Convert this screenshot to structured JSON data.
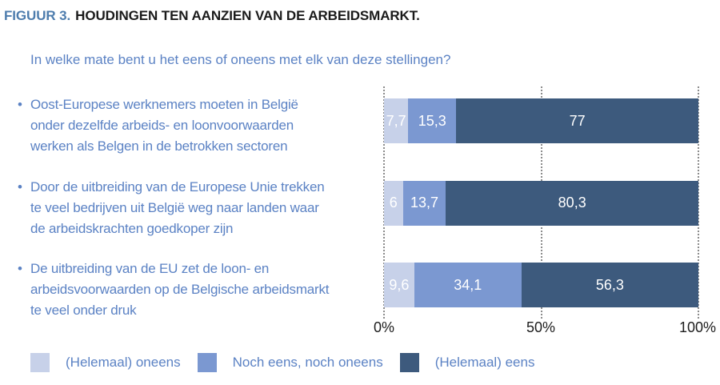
{
  "header": {
    "figure_label": "FIGUUR 3.",
    "title": "HOUDINGEN TEN AANZIEN VAN DE ARBEIDSMARKT.",
    "question": "In welke mate bent u het eens of oneens met elk van deze stellingen?"
  },
  "colors": {
    "figure_label": "#4d7cad",
    "title_text": "#1a1a1a",
    "body_text": "#5b82c4",
    "axis_text": "#1c1c1c",
    "gridline": "#8c8c8c",
    "value_label": "#ffffff"
  },
  "chart_data": {
    "type": "bar",
    "orientation": "horizontal",
    "stacked": true,
    "units": "percent",
    "xlim": [
      0,
      100
    ],
    "x_tick_values": [
      0,
      50,
      100
    ],
    "x_tick_labels": [
      "0%",
      "50%",
      "100%"
    ],
    "grid": "vertical-dotted-at-ticks",
    "legend_position": "bottom",
    "categories": [
      "Oost-Europese werknemers moeten in België\nonder dezelfde arbeids- en loonvoorwaarden\nwerken als Belgen in de betrokken sectoren",
      "Door de uitbreiding van de Europese Unie trekken\nte veel bedrijven uit België weg naar landen waar\nde arbeidskrachten goedkoper zijn",
      "De uitbreiding van de EU zet de loon- en\narbeidsvoorwaarden op de Belgische arbeidsmarkt\nte veel onder druk"
    ],
    "series": [
      {
        "name": "(Helemaal) oneens",
        "color": "#c7d1e9",
        "values": [
          7.7,
          6,
          9.6
        ],
        "value_labels": [
          "7,7",
          "6",
          "9,6"
        ]
      },
      {
        "name": "Noch eens, noch oneens",
        "color": "#7b98d1",
        "values": [
          15.3,
          13.7,
          34.1
        ],
        "value_labels": [
          "15,3",
          "13,7",
          "34,1"
        ]
      },
      {
        "name": "(Helemaal) eens",
        "color": "#3d5a7d",
        "values": [
          77,
          80.3,
          56.3
        ],
        "value_labels": [
          "77",
          "80,3",
          "56,3"
        ]
      }
    ]
  }
}
